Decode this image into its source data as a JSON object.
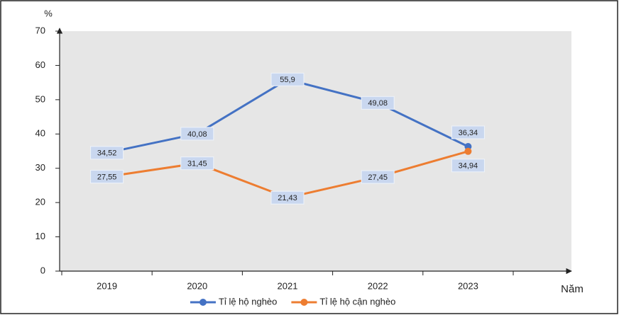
{
  "chart_data": {
    "type": "line",
    "y_label": "%",
    "x_label": "Năm",
    "categories": [
      "2019",
      "2020",
      "2021",
      "2022",
      "2023"
    ],
    "series": [
      {
        "name": "Tỉ lệ hộ nghèo",
        "color": "#4472c4",
        "values": [
          34.52,
          40.08,
          55.9,
          49.08,
          36.34
        ],
        "value_labels": [
          "34,52",
          "40,08",
          "55,9",
          "49,08",
          "36,34"
        ]
      },
      {
        "name": "Tỉ lệ hộ cận nghèo",
        "color": "#ed7d31",
        "values": [
          27.55,
          31.45,
          21.43,
          27.45,
          34.94
        ],
        "value_labels": [
          "27,55",
          "31,45",
          "21,43",
          "27,45",
          "34,94"
        ]
      }
    ],
    "ylim": [
      0,
      70
    ],
    "yticks": [
      0,
      10,
      20,
      30,
      40,
      50,
      60,
      70
    ],
    "grid": false,
    "legend": "bottom"
  }
}
